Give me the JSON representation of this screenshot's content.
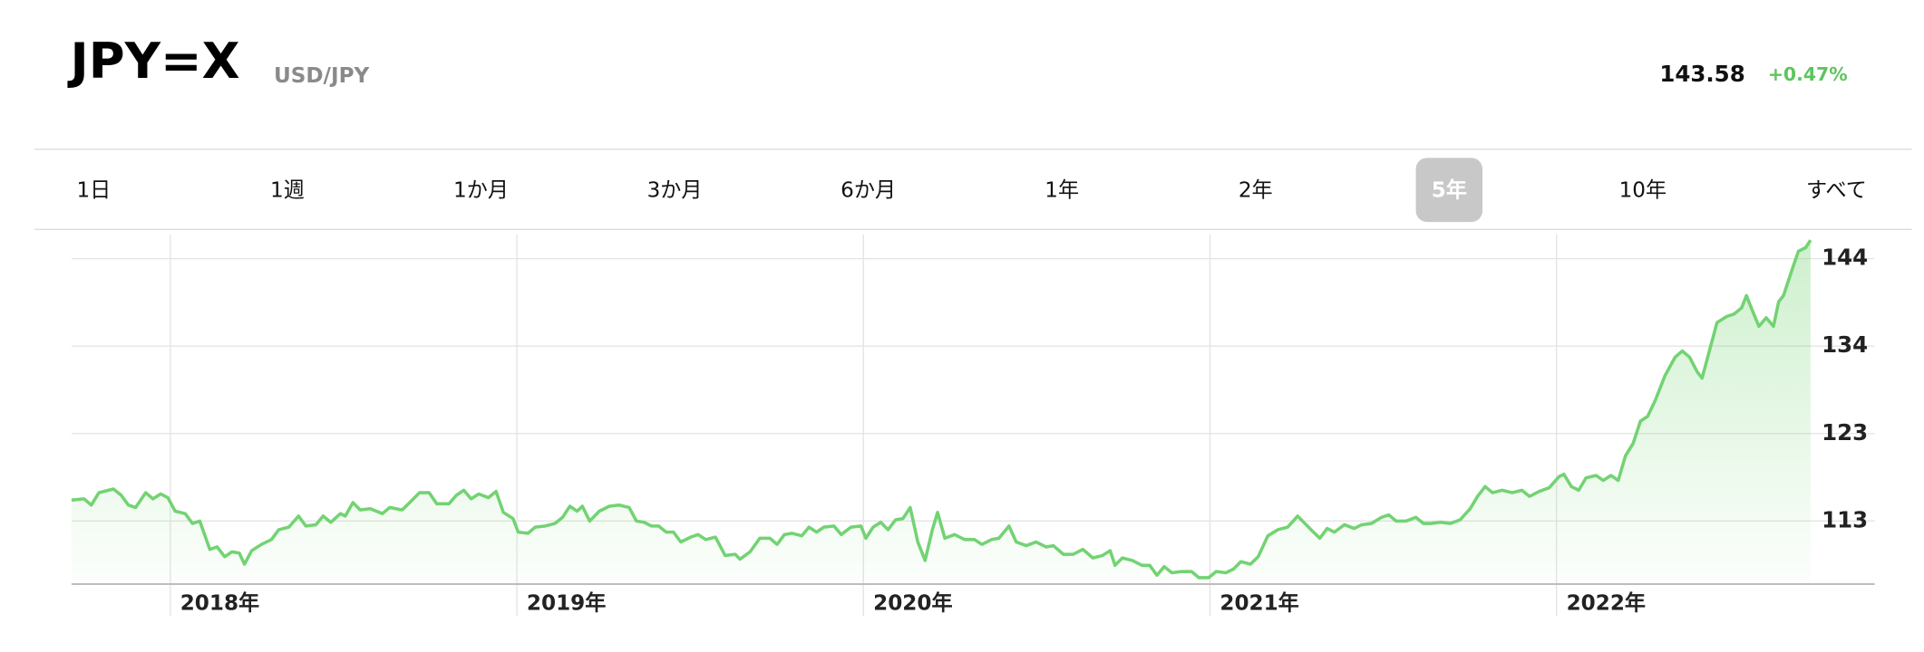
{
  "header": {
    "title": "JPY=X",
    "subtitle": "USD/JPY",
    "price": "143.58",
    "change": "+0.47%"
  },
  "tabs": {
    "items": [
      "1日",
      "1週",
      "1か月",
      "3か月",
      "6か月",
      "1年",
      "2年",
      "5年",
      "10年",
      "すべて"
    ],
    "selected": 7
  },
  "chart_data": {
    "type": "area",
    "color": "#72d372",
    "grid": true,
    "xlim": [
      2017.715,
      2022.918
    ],
    "ylim": [
      105.4,
      147.0
    ],
    "xticks": [
      {
        "value": 2018,
        "label": "2018年"
      },
      {
        "value": 2019,
        "label": "2019年"
      },
      {
        "value": 2020,
        "label": "2020年"
      },
      {
        "value": 2021,
        "label": "2021年"
      },
      {
        "value": 2022,
        "label": "2022年"
      }
    ],
    "yticks": [
      {
        "value": 112.9,
        "label": "113"
      },
      {
        "value": 123.3,
        "label": "123"
      },
      {
        "value": 133.7,
        "label": "134"
      },
      {
        "value": 144.1,
        "label": "144"
      }
    ],
    "x": [
      2017.715,
      2017.751,
      2017.772,
      2017.794,
      2017.836,
      2017.858,
      2017.879,
      2017.9,
      2017.929,
      2017.95,
      2017.972,
      2017.993,
      2018.014,
      2018.043,
      2018.064,
      2018.085,
      2018.114,
      2018.135,
      2018.157,
      2018.178,
      2018.199,
      2018.214,
      2018.235,
      2018.263,
      2018.292,
      2018.313,
      2018.342,
      2018.37,
      2018.391,
      2018.42,
      2018.441,
      2018.463,
      2018.491,
      2018.505,
      2018.527,
      2018.548,
      2018.577,
      2018.612,
      2018.633,
      2018.669,
      2018.698,
      2018.719,
      2018.747,
      2018.769,
      2018.804,
      2018.826,
      2018.847,
      2018.868,
      2018.89,
      2018.918,
      2018.94,
      2018.961,
      2018.989,
      2019.004,
      2019.032,
      2019.053,
      2019.082,
      2019.11,
      2019.132,
      2019.153,
      2019.174,
      2019.189,
      2019.21,
      2019.238,
      2019.267,
      2019.295,
      2019.324,
      2019.345,
      2019.367,
      2019.388,
      2019.409,
      2019.431,
      2019.452,
      2019.473,
      2019.502,
      2019.523,
      2019.545,
      2019.573,
      2019.601,
      2019.63,
      2019.644,
      2019.673,
      2019.701,
      2019.73,
      2019.751,
      2019.772,
      2019.794,
      2019.822,
      2019.843,
      2019.865,
      2019.886,
      2019.915,
      2019.936,
      2019.964,
      2019.993,
      2020.007,
      2020.028,
      2020.05,
      2020.071,
      2020.093,
      2020.114,
      2020.135,
      2020.157,
      2020.178,
      2020.199,
      2020.214,
      2020.235,
      2020.263,
      2020.292,
      2020.32,
      2020.342,
      2020.37,
      2020.391,
      2020.42,
      2020.441,
      2020.47,
      2020.498,
      2020.527,
      2020.548,
      2020.577,
      2020.605,
      2020.633,
      2020.662,
      2020.69,
      2020.712,
      2020.726,
      2020.747,
      2020.776,
      2020.804,
      2020.826,
      2020.847,
      2020.868,
      2020.89,
      2020.918,
      2020.947,
      2020.968,
      2020.996,
      2021.018,
      2021.046,
      2021.068,
      2021.089,
      2021.117,
      2021.139,
      2021.167,
      2021.196,
      2021.224,
      2021.253,
      2021.274,
      2021.295,
      2021.317,
      2021.338,
      2021.359,
      2021.388,
      2021.416,
      2021.438,
      2021.466,
      2021.495,
      2021.516,
      2021.537,
      2021.566,
      2021.594,
      2021.616,
      2021.637,
      2021.665,
      2021.694,
      2021.722,
      2021.751,
      2021.772,
      2021.794,
      2021.815,
      2021.843,
      2021.872,
      2021.9,
      2021.922,
      2021.95,
      2021.979,
      2022.007,
      2022.021,
      2022.043,
      2022.064,
      2022.085,
      2022.114,
      2022.135,
      2022.157,
      2022.178,
      2022.199,
      2022.221,
      2022.242,
      2022.263,
      2022.285,
      2022.313,
      2022.342,
      2022.363,
      2022.384,
      2022.406,
      2022.42,
      2022.441,
      2022.463,
      2022.491,
      2022.512,
      2022.534,
      2022.548,
      2022.562,
      2022.584,
      2022.605,
      2022.626,
      2022.641,
      2022.655,
      2022.676,
      2022.698,
      2022.719,
      2022.733
    ],
    "values": [
      115.39,
      115.54,
      114.8,
      116.27,
      116.71,
      115.98,
      114.8,
      114.51,
      116.27,
      115.54,
      116.12,
      115.68,
      114.07,
      113.78,
      112.61,
      112.9,
      109.53,
      109.82,
      108.65,
      109.24,
      109.09,
      107.77,
      109.38,
      110.12,
      110.7,
      111.87,
      112.17,
      113.49,
      112.31,
      112.46,
      113.49,
      112.75,
      113.78,
      113.49,
      115.1,
      114.22,
      114.37,
      113.78,
      114.51,
      114.22,
      115.39,
      116.27,
      116.27,
      114.95,
      114.95,
      115.98,
      116.56,
      115.54,
      116.12,
      115.68,
      116.42,
      113.93,
      113.19,
      111.58,
      111.44,
      112.17,
      112.31,
      112.61,
      113.34,
      114.66,
      114.07,
      114.66,
      112.9,
      114.07,
      114.66,
      114.8,
      114.51,
      112.9,
      112.75,
      112.31,
      112.31,
      111.58,
      111.58,
      110.41,
      110.99,
      111.29,
      110.7,
      110.99,
      108.8,
      108.94,
      108.36,
      109.24,
      110.85,
      110.85,
      110.12,
      111.29,
      111.44,
      111.14,
      112.17,
      111.58,
      112.17,
      112.31,
      111.29,
      112.17,
      112.31,
      110.85,
      112.17,
      112.75,
      111.87,
      113.05,
      113.19,
      114.51,
      110.41,
      108.21,
      111.87,
      113.93,
      110.85,
      111.29,
      110.7,
      110.7,
      110.12,
      110.7,
      110.85,
      112.31,
      110.41,
      109.97,
      110.41,
      109.82,
      109.97,
      108.94,
      108.94,
      109.53,
      108.51,
      108.8,
      109.38,
      107.63,
      108.51,
      108.21,
      107.63,
      107.63,
      106.45,
      107.48,
      106.75,
      106.89,
      106.89,
      106.16,
      106.16,
      106.89,
      106.75,
      107.19,
      108.07,
      107.77,
      108.65,
      111.14,
      111.87,
      112.17,
      113.49,
      112.61,
      111.73,
      110.85,
      112.02,
      111.58,
      112.46,
      112.02,
      112.46,
      112.61,
      113.34,
      113.63,
      112.9,
      112.9,
      113.34,
      112.61,
      112.61,
      112.75,
      112.61,
      113.05,
      114.37,
      115.83,
      117.0,
      116.27,
      116.56,
      116.27,
      116.56,
      115.83,
      116.42,
      116.86,
      118.17,
      118.47,
      117.0,
      116.56,
      118.03,
      118.32,
      117.73,
      118.32,
      117.73,
      120.66,
      122.13,
      124.77,
      125.35,
      127.26,
      130.19,
      132.38,
      133.12,
      132.38,
      130.63,
      129.89,
      133.12,
      136.49,
      137.22,
      137.51,
      138.24,
      139.71,
      138.24,
      136.05,
      137.07,
      136.05,
      138.98,
      139.71,
      142.35,
      144.98,
      145.42,
      146.3
    ]
  }
}
